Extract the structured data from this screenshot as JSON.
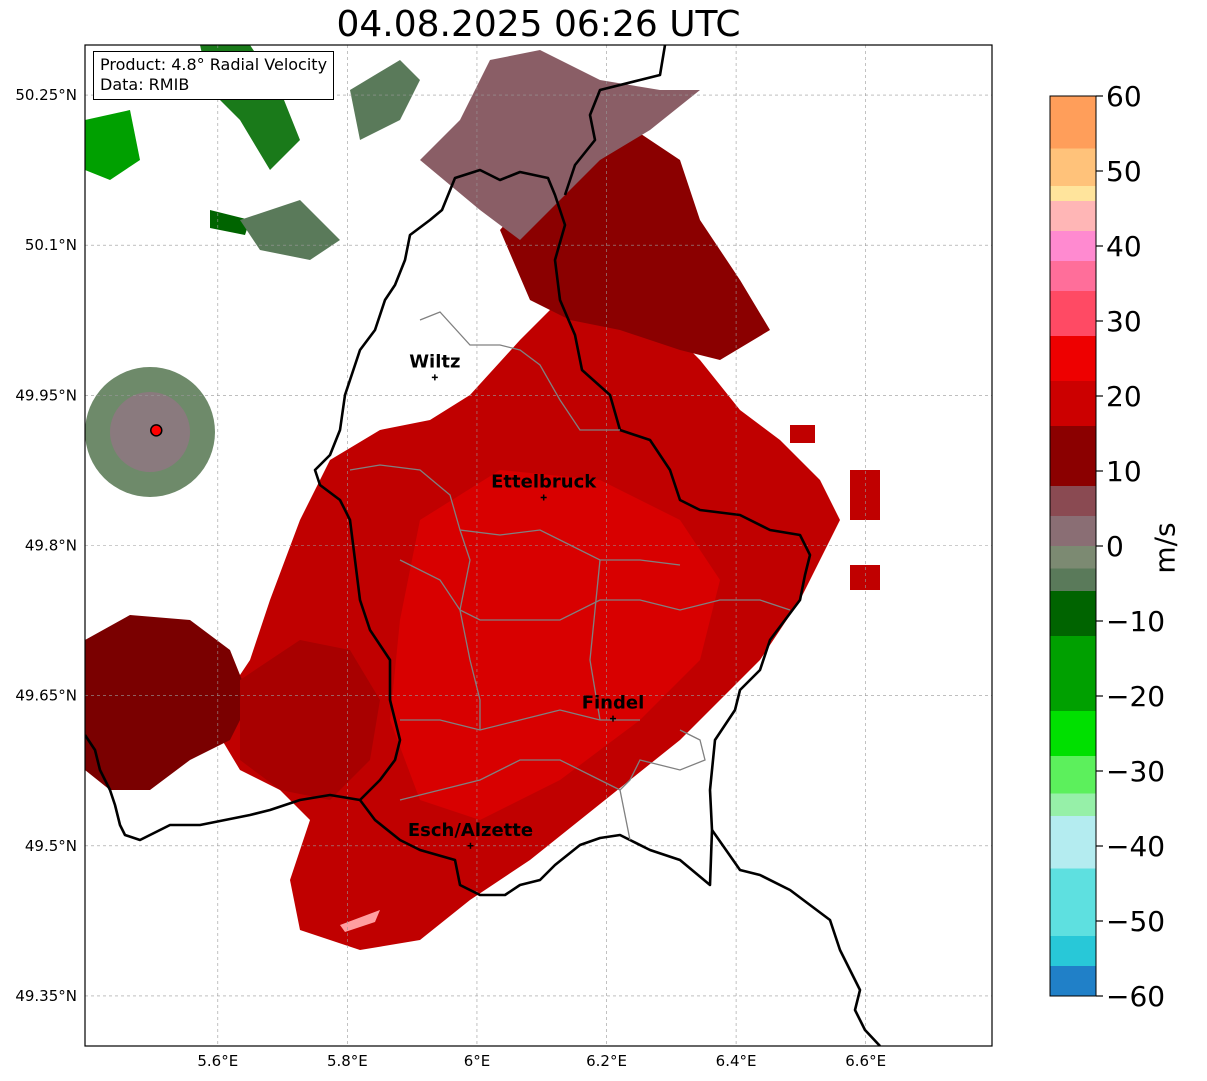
{
  "title": "04.08.2025 06:26 UTC",
  "info_box": {
    "product": "Product: 4.8° Radial Velocity",
    "data": "Data: RMIB"
  },
  "map": {
    "lon_ticks": [
      {
        "lon": 5.6,
        "label": "5.6°E"
      },
      {
        "lon": 5.8,
        "label": "5.8°E"
      },
      {
        "lon": 6.0,
        "label": "6°E"
      },
      {
        "lon": 6.2,
        "label": "6.2°E"
      },
      {
        "lon": 6.4,
        "label": "6.4°E"
      },
      {
        "lon": 6.6,
        "label": "6.6°E"
      }
    ],
    "lat_ticks": [
      {
        "lat": 50.25,
        "label": "50.25°N"
      },
      {
        "lat": 50.1,
        "label": "50.1°N"
      },
      {
        "lat": 49.95,
        "label": "49.95°N"
      },
      {
        "lat": 49.8,
        "label": "49.8°N"
      },
      {
        "lat": 49.65,
        "label": "49.65°N"
      },
      {
        "lat": 49.5,
        "label": "49.5°N"
      },
      {
        "lat": 49.35,
        "label": "49.35°N"
      }
    ],
    "extent": {
      "lon_min": 5.395,
      "lon_max": 6.795,
      "lat_min": 49.3,
      "lat_max": 50.3
    },
    "cities": [
      {
        "name": "Wiltz",
        "lon": 5.935,
        "lat": 49.968
      },
      {
        "name": "Ettelbruck",
        "lon": 6.103,
        "lat": 49.848
      },
      {
        "name": "Findel",
        "lon": 6.21,
        "lat": 49.627
      },
      {
        "name": "Esch/Alzette",
        "lon": 5.99,
        "lat": 49.5
      }
    ],
    "radar_site": {
      "lon": 5.505,
      "lat": 49.915,
      "color": "#ff0000"
    }
  },
  "colorbar": {
    "label": "m/s",
    "min": -60,
    "max": 60,
    "ticks": [
      {
        "value": 60,
        "label": "60"
      },
      {
        "value": 50,
        "label": "50"
      },
      {
        "value": 40,
        "label": "40"
      },
      {
        "value": 30,
        "label": "30"
      },
      {
        "value": 20,
        "label": "20"
      },
      {
        "value": 10,
        "label": "10"
      },
      {
        "value": 0,
        "label": "0"
      },
      {
        "value": -10,
        "label": "−10"
      },
      {
        "value": -20,
        "label": "−20"
      },
      {
        "value": -30,
        "label": "−30"
      },
      {
        "value": -40,
        "label": "−40"
      },
      {
        "value": -50,
        "label": "−50"
      },
      {
        "value": -60,
        "label": "−60"
      }
    ],
    "bands": [
      {
        "from": 53,
        "to": 60,
        "color": "#ff9e5a"
      },
      {
        "from": 48,
        "to": 53,
        "color": "#ffc27a"
      },
      {
        "from": 46,
        "to": 48,
        "color": "#ffe49c"
      },
      {
        "from": 42,
        "to": 46,
        "color": "#ffb6b6"
      },
      {
        "from": 38,
        "to": 42,
        "color": "#ff8ad0"
      },
      {
        "from": 34,
        "to": 38,
        "color": "#ff6e9a"
      },
      {
        "from": 28,
        "to": 34,
        "color": "#ff4a64"
      },
      {
        "from": 22,
        "to": 28,
        "color": "#ee0000"
      },
      {
        "from": 16,
        "to": 22,
        "color": "#cc0000"
      },
      {
        "from": 8,
        "to": 16,
        "color": "#8b0000"
      },
      {
        "from": 4,
        "to": 8,
        "color": "#8a4a52"
      },
      {
        "from": 0,
        "to": 4,
        "color": "#8a6e74"
      },
      {
        "from": -3,
        "to": 0,
        "color": "#7c8a72"
      },
      {
        "from": -6,
        "to": -3,
        "color": "#5a7a5a"
      },
      {
        "from": -12,
        "to": -6,
        "color": "#006400"
      },
      {
        "from": -22,
        "to": -12,
        "color": "#00a000"
      },
      {
        "from": -28,
        "to": -22,
        "color": "#00e000"
      },
      {
        "from": -33,
        "to": -28,
        "color": "#5cf05c"
      },
      {
        "from": -36,
        "to": -33,
        "color": "#96f0a8"
      },
      {
        "from": -43,
        "to": -36,
        "color": "#b4ecf0"
      },
      {
        "from": -52,
        "to": -43,
        "color": "#5ee0e0"
      },
      {
        "from": -56,
        "to": -52,
        "color": "#28c8d8"
      },
      {
        "from": -60,
        "to": -56,
        "color": "#2080c8"
      }
    ]
  }
}
